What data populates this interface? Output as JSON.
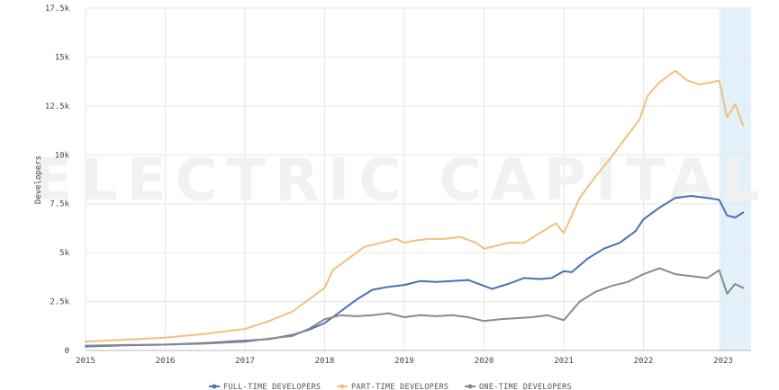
{
  "chart_data": {
    "type": "line",
    "ylabel": "Developers",
    "xlabel": "",
    "xlim": [
      2015.0,
      2023.35
    ],
    "ylim": [
      0,
      17500
    ],
    "x_ticks": [
      2015,
      2016,
      2017,
      2018,
      2019,
      2020,
      2021,
      2022,
      2023
    ],
    "x_tick_labels": [
      "2015",
      "2016",
      "2017",
      "2018",
      "2019",
      "2020",
      "2021",
      "2022",
      "2023"
    ],
    "y_ticks": [
      0,
      2500,
      5000,
      7500,
      10000,
      12500,
      15000,
      17500
    ],
    "y_tick_labels": [
      "0",
      "2.5k",
      "5k",
      "7.5k",
      "10k",
      "12.5k",
      "15k",
      "17.5k"
    ],
    "grid": true,
    "legend_position": "bottom",
    "watermark": "ELECTRIC CAPITAL",
    "highlight_range": [
      2022.95,
      2023.35
    ],
    "colors": {
      "full_time": "#4a6fb5",
      "part_time": "#f0c080",
      "one_time": "#8a8a8a",
      "highlight": "#e3f1fa",
      "grid": "#e6e6e6"
    },
    "series": [
      {
        "name": "FULL-TIME DEVELOPERS",
        "key": "full_time",
        "x": [
          2015.0,
          2015.5,
          2016.0,
          2016.5,
          2017.0,
          2017.3,
          2017.6,
          2017.8,
          2018.0,
          2018.2,
          2018.4,
          2018.6,
          2018.8,
          2019.0,
          2019.2,
          2019.4,
          2019.6,
          2019.8,
          2020.0,
          2020.1,
          2020.3,
          2020.5,
          2020.7,
          2020.85,
          2021.0,
          2021.1,
          2021.3,
          2021.5,
          2021.7,
          2021.9,
          2022.0,
          2022.2,
          2022.4,
          2022.6,
          2022.8,
          2022.95,
          2023.05,
          2023.15,
          2023.25
        ],
        "values": [
          200,
          260,
          300,
          380,
          500,
          580,
          800,
          1050,
          1400,
          2000,
          2600,
          3100,
          3250,
          3350,
          3550,
          3500,
          3550,
          3600,
          3300,
          3150,
          3400,
          3700,
          3650,
          3700,
          4050,
          4000,
          4700,
          5200,
          5500,
          6100,
          6700,
          7300,
          7800,
          7900,
          7800,
          7700,
          6900,
          6800,
          7050
        ]
      },
      {
        "name": "PART-TIME DEVELOPERS",
        "key": "part_time",
        "x": [
          2015.0,
          2015.5,
          2016.0,
          2016.5,
          2017.0,
          2017.3,
          2017.6,
          2017.8,
          2018.0,
          2018.1,
          2018.3,
          2018.5,
          2018.7,
          2018.9,
          2019.0,
          2019.1,
          2019.3,
          2019.5,
          2019.7,
          2019.9,
          2020.0,
          2020.1,
          2020.3,
          2020.5,
          2020.7,
          2020.9,
          2021.0,
          2021.2,
          2021.4,
          2021.6,
          2021.8,
          2021.95,
          2022.05,
          2022.2,
          2022.4,
          2022.55,
          2022.7,
          2022.85,
          2022.95,
          2023.05,
          2023.15,
          2023.25
        ],
        "values": [
          450,
          550,
          650,
          850,
          1100,
          1500,
          2000,
          2600,
          3200,
          4100,
          4700,
          5300,
          5500,
          5700,
          5500,
          5600,
          5700,
          5700,
          5800,
          5500,
          5200,
          5300,
          5500,
          5500,
          6000,
          6500,
          6000,
          7800,
          8900,
          9900,
          11000,
          11800,
          13000,
          13700,
          14300,
          13800,
          13600,
          13700,
          13800,
          11900,
          12600,
          11500
        ]
      },
      {
        "name": "ONE-TIME DEVELOPERS",
        "key": "one_time",
        "x": [
          2015.0,
          2015.5,
          2016.0,
          2016.5,
          2017.0,
          2017.3,
          2017.6,
          2017.8,
          2018.0,
          2018.2,
          2018.4,
          2018.6,
          2018.8,
          2019.0,
          2019.2,
          2019.4,
          2019.6,
          2019.8,
          2020.0,
          2020.2,
          2020.4,
          2020.6,
          2020.8,
          2021.0,
          2021.2,
          2021.4,
          2021.6,
          2021.8,
          2022.0,
          2022.2,
          2022.4,
          2022.6,
          2022.8,
          2022.95,
          2023.05,
          2023.15,
          2023.25
        ],
        "values": [
          250,
          280,
          300,
          350,
          450,
          600,
          750,
          1100,
          1600,
          1800,
          1750,
          1800,
          1900,
          1700,
          1800,
          1750,
          1800,
          1700,
          1500,
          1600,
          1650,
          1700,
          1800,
          1550,
          2500,
          3000,
          3300,
          3500,
          3900,
          4200,
          3900,
          3800,
          3700,
          4100,
          2900,
          3400,
          3200
        ]
      }
    ]
  }
}
